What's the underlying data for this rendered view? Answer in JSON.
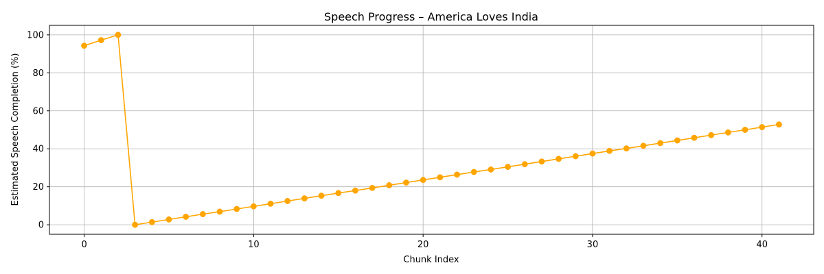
{
  "chart_data": {
    "type": "line",
    "title": "Speech Progress – America Loves India",
    "xlabel": "Chunk Index",
    "ylabel": "Estimated Speech Completion (%)",
    "xlim": [
      -2.05,
      43.05
    ],
    "ylim": [
      -5,
      105
    ],
    "x_ticks": [
      0,
      10,
      20,
      30,
      40
    ],
    "y_ticks": [
      0,
      20,
      40,
      60,
      80,
      100
    ],
    "grid": true,
    "line_color": "#FFA500",
    "marker": "circle",
    "series": [
      {
        "x": [
          0,
          1,
          2,
          3,
          4,
          5,
          6,
          7,
          8,
          9,
          10,
          11,
          12,
          13,
          14,
          15,
          16,
          17,
          18,
          19,
          20,
          21,
          22,
          23,
          24,
          25,
          26,
          27,
          28,
          29,
          30,
          31,
          32,
          33,
          34,
          35,
          36,
          37,
          38,
          39,
          40,
          41
        ],
        "values": [
          94.3,
          97.2,
          100.0,
          0.0,
          1.4,
          2.8,
          4.2,
          5.6,
          6.9,
          8.3,
          9.7,
          11.1,
          12.5,
          13.9,
          15.3,
          16.7,
          18.0,
          19.4,
          20.8,
          22.2,
          23.6,
          25.0,
          26.4,
          27.8,
          29.1,
          30.5,
          31.9,
          33.3,
          34.7,
          36.1,
          37.5,
          38.9,
          40.2,
          41.6,
          43.0,
          44.4,
          45.8,
          47.2,
          48.6,
          50.0,
          51.4,
          52.8
        ]
      }
    ]
  }
}
